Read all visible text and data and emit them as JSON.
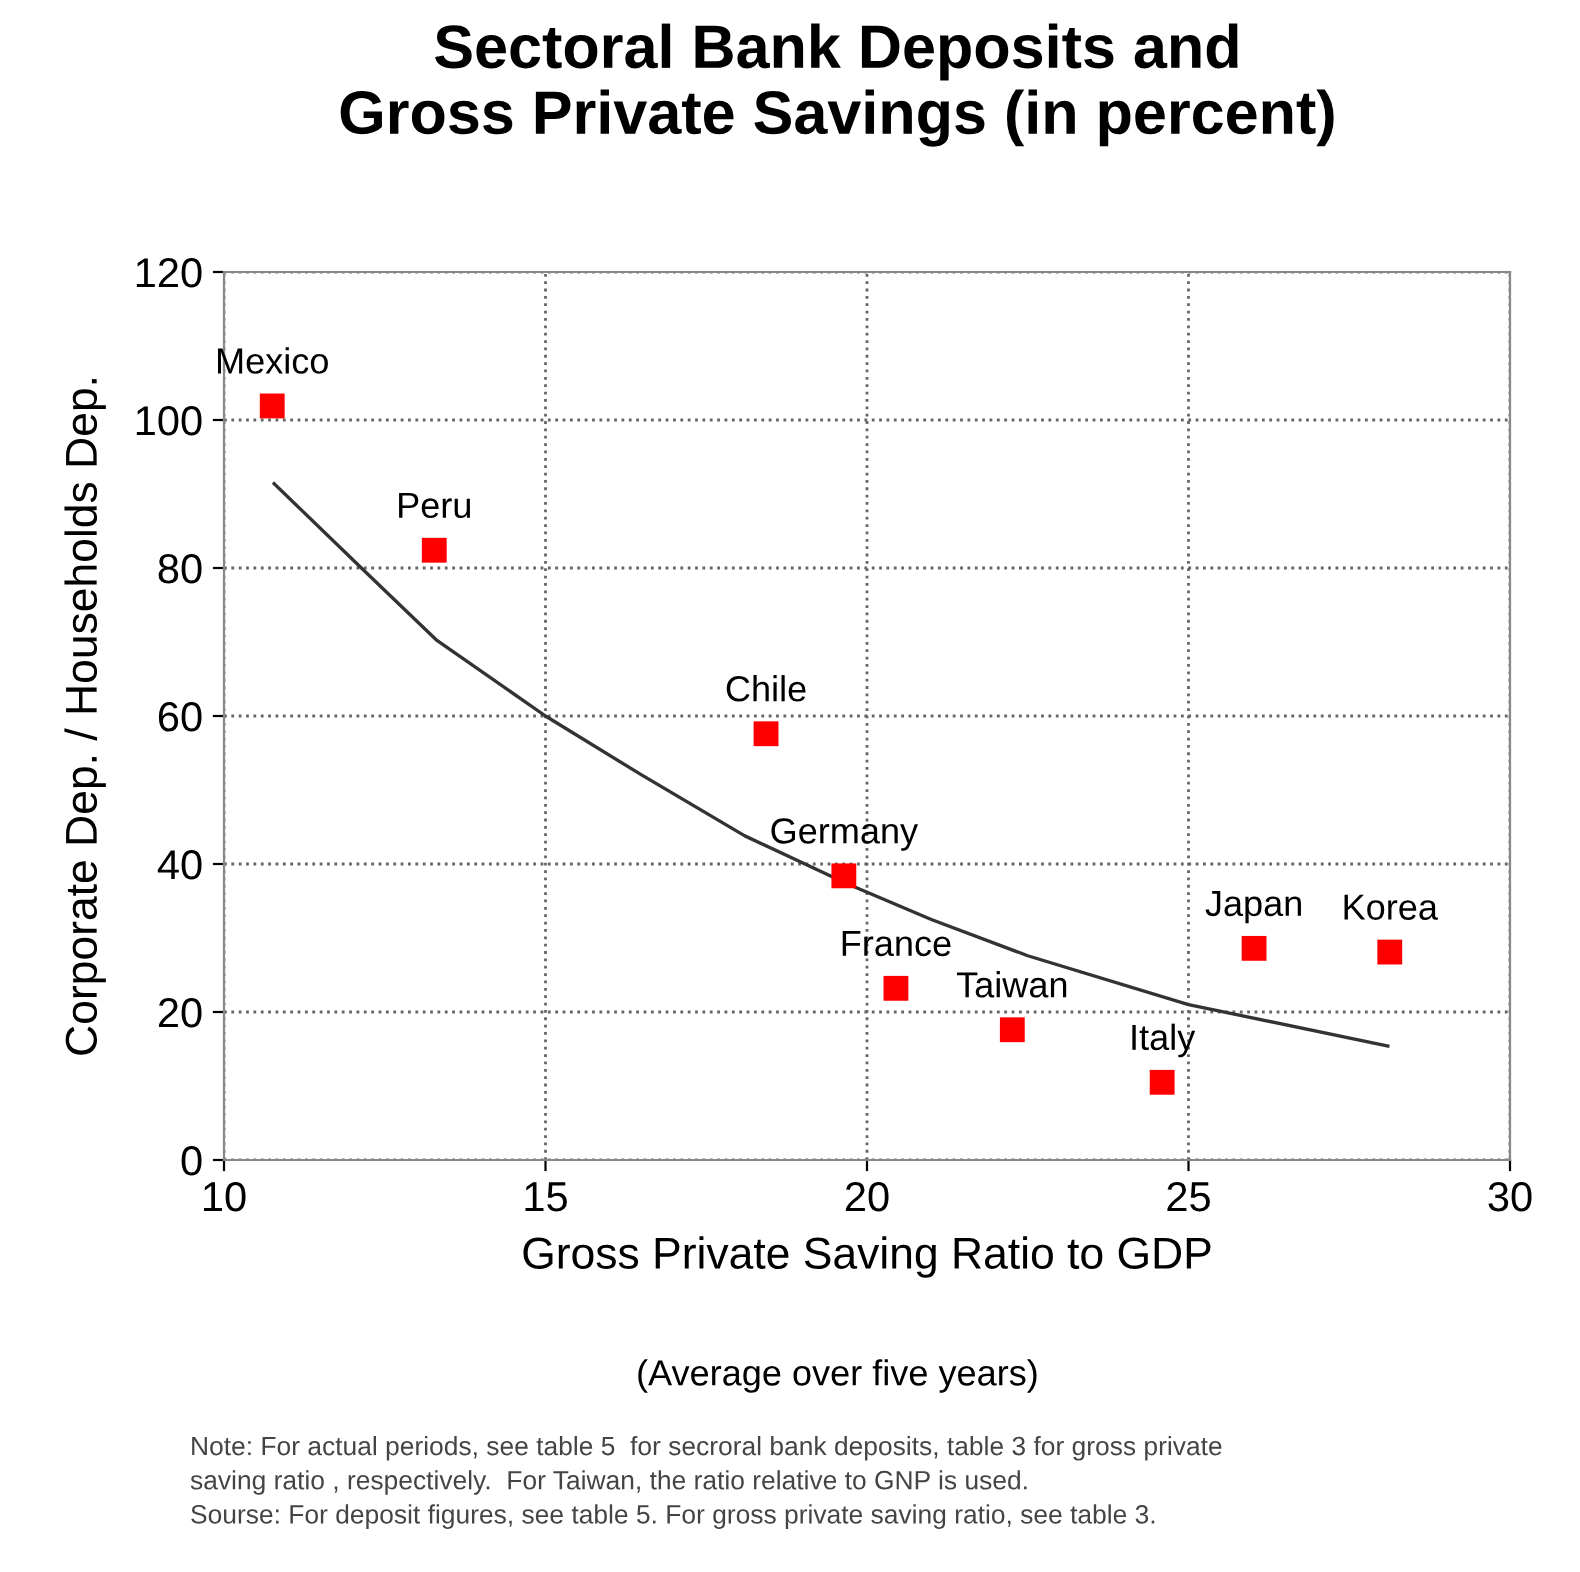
{
  "chart_data": {
    "type": "scatter",
    "title": "Sectoral Bank Deposits and\nGross Private Savings (in percent)",
    "xlabel": "Gross Private Saving Ratio to GDP",
    "ylabel": "Corporate Dep. / Households Dep.",
    "xlim": [
      10,
      30
    ],
    "xticks": [
      10,
      15,
      20,
      25,
      30
    ],
    "ylim": [
      0,
      120
    ],
    "yticks": [
      0,
      20,
      40,
      60,
      80,
      100,
      120
    ],
    "grid": true,
    "legend": false,
    "marker": "square",
    "series": [
      {
        "color": "#ff0000",
        "x": [
          10.75,
          13.27,
          18.43,
          19.64,
          20.45,
          22.26,
          24.59,
          26.02,
          28.13
        ],
        "values": [
          101.9,
          82.4,
          57.6,
          38.4,
          23.2,
          17.6,
          10.5,
          28.6,
          28.1
        ]
      },
      {
        "type": "line",
        "color": "#333333",
        "marker": "none",
        "line_style": "solid",
        "x": [
          10.78,
          12.1,
          13.3,
          15,
          16.5,
          18.1,
          19.7,
          21,
          22.5,
          25,
          28.1
        ],
        "values": [
          91.4,
          80.3,
          70.3,
          60,
          52,
          43.8,
          37.3,
          32.5,
          27.6,
          21,
          15.4
        ]
      }
    ],
    "annotations": [
      {
        "text": "Mexico",
        "x": 10.75,
        "y": 101.9
      },
      {
        "text": "Peru",
        "x": 13.27,
        "y": 82.4
      },
      {
        "text": "Chile",
        "x": 18.43,
        "y": 57.6
      },
      {
        "text": "Germany",
        "x": 19.64,
        "y": 38.4
      },
      {
        "text": "France",
        "x": 20.45,
        "y": 23.2
      },
      {
        "text": "Taiwan",
        "x": 22.26,
        "y": 17.6
      },
      {
        "text": "Italy",
        "x": 24.59,
        "y": 10.5
      },
      {
        "text": "Japan",
        "x": 26.02,
        "y": 28.6
      },
      {
        "text": "Korea",
        "x": 28.13,
        "y": 28.1
      },
      "(Average over five years)",
      "Note: For actual periods, see table 5  for secroral bank deposits, table 3 for gross private\nsaving ratio , respectively.  For Taiwan, the ratio relative to GNP is used.\nSourse: For deposit figures, see table 5. For gross private saving ratio, see table 3."
    ]
  }
}
